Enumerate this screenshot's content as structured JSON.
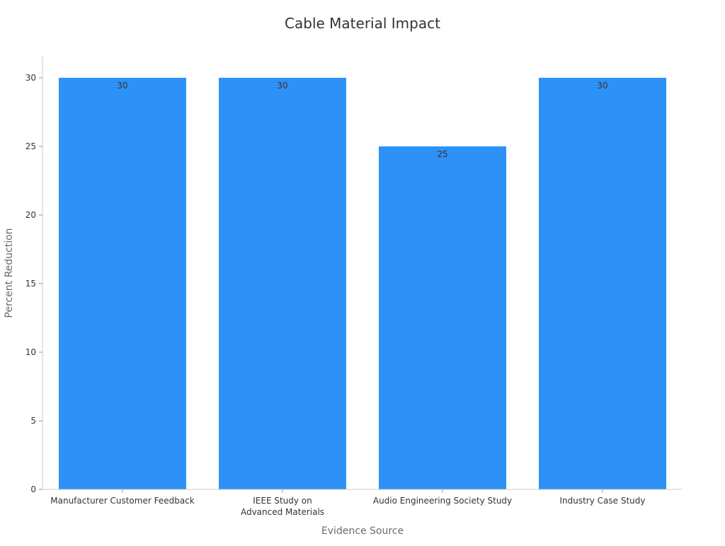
{
  "chart_data": {
    "type": "bar",
    "title": "Cable Material Impact",
    "xlabel": "Evidence Source",
    "ylabel": "Percent Reduction",
    "categories": [
      [
        "Manufacturer Customer Feedback"
      ],
      [
        "IEEE Study on",
        "Advanced Materials"
      ],
      [
        "Audio Engineering Society Study"
      ],
      [
        "Industry Case Study"
      ]
    ],
    "values": [
      30,
      30,
      25,
      30
    ],
    "data_labels": [
      "30",
      "30",
      "25",
      "30"
    ],
    "ylim": [
      0,
      30
    ],
    "yticks": [
      0,
      5,
      10,
      15,
      20,
      25,
      30
    ],
    "grid": false,
    "legend": "none",
    "bar_color": "#2e91f8"
  }
}
